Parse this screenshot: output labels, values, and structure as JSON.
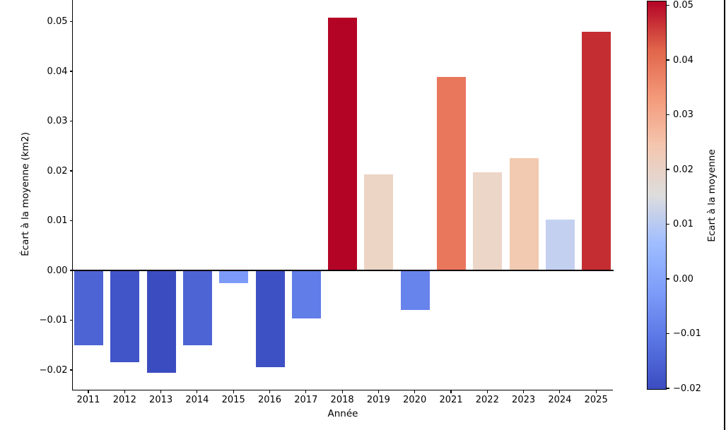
{
  "chart_data": {
    "type": "bar",
    "title": "",
    "xlabel": "Année",
    "ylabel": "Écart à la moyenne (km2)",
    "grid": false,
    "legend": "none",
    "ylim": [
      -0.0241,
      0.0543
    ],
    "categories": [
      "2011",
      "2012",
      "2013",
      "2014",
      "2015",
      "2016",
      "2017",
      "2018",
      "2019",
      "2020",
      "2021",
      "2022",
      "2023",
      "2024",
      "2025"
    ],
    "values": [
      -0.0151,
      -0.0185,
      -0.0206,
      -0.0151,
      -0.0026,
      -0.0194,
      -0.0096,
      0.0508,
      0.0193,
      -0.008,
      0.0389,
      0.0197,
      0.0225,
      0.0102,
      0.0479
    ],
    "bar_colors": [
      "#4d64d5",
      "#4155c8",
      "#3b4cc0",
      "#4d64d5",
      "#7c9bf9",
      "#3e51c4",
      "#607de8",
      "#b40426",
      "#ecd5c5",
      "#6783ec",
      "#e9775c",
      "#ecd6c7",
      "#f2cab1",
      "#c3d0f0",
      "#c42e32"
    ],
    "yticks": {
      "values": [
        0.05,
        0.04,
        0.03,
        0.02,
        0.01,
        0.0,
        -0.01,
        -0.02
      ],
      "labels": [
        "0.05",
        "0.04",
        "0.03",
        "0.02",
        "0.01",
        "0.00",
        "−0.01",
        "−0.02"
      ]
    },
    "colorbar": {
      "label": "Ecart à la moyenne",
      "colormap": "coolwarm",
      "vmin": -0.0206,
      "vmax": 0.051,
      "ticks": {
        "values": [
          0.05,
          0.04,
          0.03,
          0.02,
          0.01,
          0.0,
          -0.01,
          -0.02
        ],
        "labels": [
          "0.05",
          "0.04",
          "0.03",
          "0.02",
          "0.01",
          "0.00",
          "−0.01",
          "−0.02"
        ]
      },
      "gradient": [
        {
          "pos": "0%",
          "color": "#b40426"
        },
        {
          "pos": "12.5%",
          "color": "#e1654a"
        },
        {
          "pos": "25%",
          "color": "#f49a7b"
        },
        {
          "pos": "37.5%",
          "color": "#f4c7b0"
        },
        {
          "pos": "50%",
          "color": "#dddddd"
        },
        {
          "pos": "62.5%",
          "color": "#9fbdff"
        },
        {
          "pos": "75%",
          "color": "#7c9cf9"
        },
        {
          "pos": "87.5%",
          "color": "#5975e4"
        },
        {
          "pos": "100%",
          "color": "#3b4cc0"
        }
      ]
    }
  }
}
